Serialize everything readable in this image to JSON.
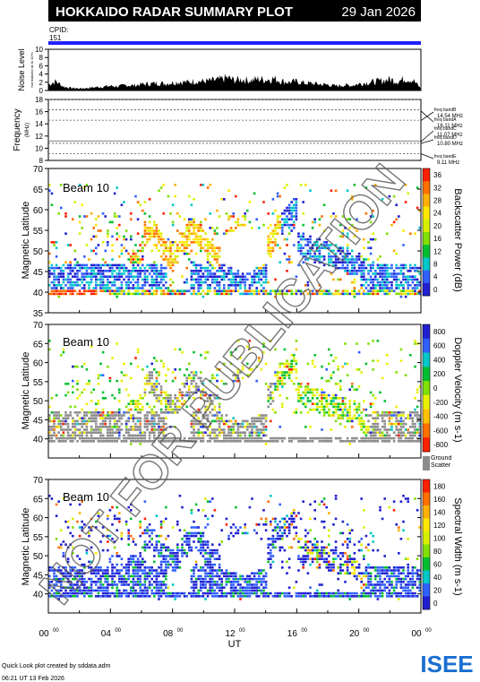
{
  "header": {
    "title": "HOKKAIDO RADAR SUMMARY PLOT",
    "date": "29 Jan 2026",
    "cpid_label": "CPID:",
    "cpid_value": "151"
  },
  "footer": {
    "credit": "Quick Look plot created by sddata.adm",
    "timestamp": "06:21 UT 13 Feb 2026",
    "logo_text": "ISEE"
  },
  "watermark": "NOT FOR PUBLICATION",
  "colors": {
    "header_bg": "#000000",
    "header_text": "#ffffff",
    "cpid_bar": "#1f1fff",
    "ground_scatter": "#8c8c8c",
    "logo_green": "#4caf50",
    "logo_blue": "#1a6fd0"
  },
  "chart_data": [
    {
      "type": "area",
      "panel": "noise",
      "ylabel": "Noise Level",
      "ylabel_units": "Normalized sk to 10^n",
      "ylim": [
        0,
        10
      ],
      "yticks": [
        "10",
        "8",
        "6",
        "4",
        "2",
        "0"
      ],
      "x": [
        0,
        0.5,
        1,
        1.5,
        2,
        2.5,
        3,
        3.5,
        4,
        4.5,
        5,
        5.5,
        6,
        6.5,
        7,
        7.5,
        8,
        8.5,
        9,
        9.5,
        10,
        10.5,
        11,
        11.5,
        12,
        12.5,
        13,
        13.5,
        14,
        14.5,
        15,
        15.5,
        16,
        16.5,
        17,
        17.5,
        18,
        18.5,
        19,
        19.5,
        20,
        20.5,
        21,
        21.5,
        22,
        22.5,
        23,
        23.5,
        24
      ],
      "values": [
        1.5,
        2.2,
        0.9,
        0.6,
        0.5,
        0.6,
        0.8,
        0.9,
        1.1,
        1.0,
        1.3,
        1.2,
        1.5,
        1.6,
        1.8,
        1.7,
        1.9,
        2.1,
        2.0,
        2.3,
        2.2,
        2.4,
        2.6,
        3.1,
        2.5,
        2.7,
        2.4,
        2.8,
        2.6,
        2.9,
        2.3,
        2.0,
        2.2,
        1.8,
        1.7,
        1.5,
        1.4,
        1.1,
        1.3,
        1.2,
        1.6,
        1.9,
        2.1,
        2.4,
        2.7,
        2.2,
        2.9,
        2.5,
        0.5
      ]
    },
    {
      "type": "line",
      "panel": "frequency",
      "ylabel": "Frequency",
      "ylabel_units": "(MHz)",
      "ylim": [
        8,
        18
      ],
      "yticks": [
        "18",
        "16",
        "14",
        "12",
        "10",
        "8"
      ],
      "bands": [
        {
          "name": "freq bandA",
          "value_label": "16.11 MHz",
          "value": 16.11
        },
        {
          "name": "freq bandB",
          "value_label": "14.54 MHz",
          "value": 14.54
        },
        {
          "name": "freq bandC",
          "value_label": "11.07 MHz",
          "value": 11.07
        },
        {
          "name": "freq bandD",
          "value_label": "10.80 MHz",
          "value": 10.8
        },
        {
          "name": "freq bandE",
          "value_label": "9.11 MHz",
          "value": 9.11
        }
      ]
    },
    {
      "type": "heatmap",
      "panel": "power",
      "beam_label": "Beam 10",
      "ylabel": "Magnetic Latitude",
      "ylim": [
        35,
        70
      ],
      "yticks": [
        "70",
        "65",
        "60",
        "55",
        "50",
        "45",
        "40",
        "35"
      ],
      "colorbar_label": "Backscatter Power (dB)",
      "colorbar_ticks": [
        "36",
        "32",
        "28",
        "24",
        "20",
        "16",
        "12",
        "8",
        "4",
        "0"
      ],
      "colorbar_range": [
        0,
        36
      ],
      "colorbar_colors": [
        "#ff2000",
        "#ff7000",
        "#ffb000",
        "#ffe800",
        "#d8f000",
        "#80e000",
        "#00c030",
        "#00c8c8",
        "#3060ff",
        "#2020d0"
      ]
    },
    {
      "type": "heatmap",
      "panel": "velocity",
      "beam_label": "Beam 10",
      "ylabel": "Magnetic Latitude",
      "ylim": [
        35,
        70
      ],
      "yticks": [
        "70",
        "65",
        "60",
        "55",
        "50",
        "45",
        "40"
      ],
      "colorbar_label": "Doppler Velocity (m s-1)",
      "colorbar_ticks": [
        "800",
        "600",
        "400",
        "200",
        "0",
        "-200",
        "-400",
        "-600",
        "-800"
      ],
      "colorbar_range": [
        -800,
        800
      ],
      "colorbar_colors": [
        "#2020d0",
        "#3060ff",
        "#00c8c8",
        "#00c030",
        "#80e000",
        "#e8f000",
        "#ffc000",
        "#ff7000",
        "#ff2000"
      ],
      "ground_scatter_label": "Ground Scatter"
    },
    {
      "type": "heatmap",
      "panel": "width",
      "beam_label": "Beam 10",
      "ylabel": "Magnetic Latitude",
      "ylim": [
        35,
        70
      ],
      "yticks": [
        "70",
        "65",
        "60",
        "55",
        "50",
        "45",
        "40"
      ],
      "xlabel": "UT",
      "xlim": [
        0,
        24
      ],
      "xticks": [
        "00",
        "04",
        "08",
        "12",
        "16",
        "20",
        "00"
      ],
      "colorbar_label": "Spectral Width (m s-1)",
      "colorbar_ticks": [
        "180",
        "160",
        "140",
        "120",
        "100",
        "80",
        "60",
        "40",
        "20",
        "0"
      ],
      "colorbar_range": [
        0,
        180
      ],
      "colorbar_colors": [
        "#ff2000",
        "#ff7000",
        "#ffb000",
        "#ffe800",
        "#d8f000",
        "#80e000",
        "#00c030",
        "#00c8c8",
        "#3060ff",
        "#2020d0"
      ]
    }
  ]
}
